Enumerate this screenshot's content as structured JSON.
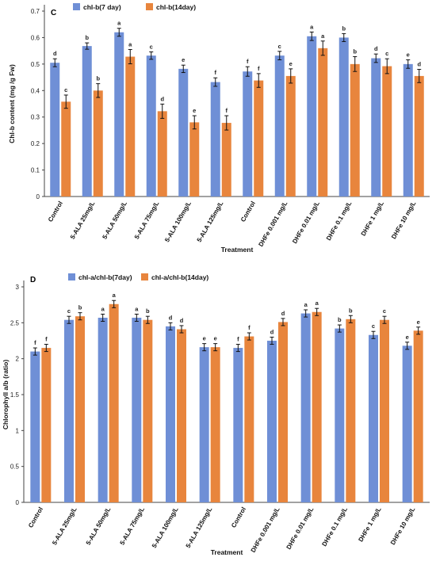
{
  "chart_data": [
    {
      "panel": "C",
      "type": "bar",
      "ylabel": "Chl-b content (mg /g Fw)",
      "xlabel": "Treatment",
      "ylim": [
        0,
        0.7
      ],
      "yticks": [
        "0",
        "0.1",
        "0.2",
        "0.3",
        "0.4",
        "0.5",
        "0.6",
        "0.7"
      ],
      "legend_position": "top-left",
      "categories": [
        "Control",
        "5-ALA 25mg/L",
        "5-ALA 50mg/L",
        "5-ALA 75mg/L",
        "5-ALA 100mg/L",
        "5-ALA 125mg/L",
        "Control",
        "DHFe 0.001 mg/L",
        "DHFe 0.01 mg/L",
        "DHFe 0.1 mg/L",
        "DHFe 1 mg/L",
        "DHFe 10 mg/L"
      ],
      "series": [
        {
          "name": "chl-b(7 day)",
          "color": "#6f8fd6",
          "values": [
            0.505,
            0.568,
            0.62,
            0.532,
            0.482,
            0.432,
            0.472,
            0.532,
            0.605,
            0.6,
            0.522,
            0.5
          ],
          "errors": [
            0.015,
            0.012,
            0.015,
            0.014,
            0.014,
            0.016,
            0.018,
            0.016,
            0.016,
            0.015,
            0.016,
            0.016
          ],
          "letters": [
            "d",
            "b",
            "a",
            "c",
            "e",
            "f",
            "f",
            "c",
            "a",
            "b",
            "d",
            "e"
          ]
        },
        {
          "name": "chl-b(14day)",
          "color": "#e8853d",
          "values": [
            0.358,
            0.4,
            0.528,
            0.322,
            0.28,
            0.278,
            0.438,
            0.455,
            0.56,
            0.5,
            0.492,
            0.455
          ],
          "errors": [
            0.025,
            0.026,
            0.027,
            0.027,
            0.025,
            0.027,
            0.026,
            0.027,
            0.027,
            0.028,
            0.028,
            0.025
          ],
          "letters": [
            "c",
            "b",
            "a",
            "d",
            "e",
            "f",
            "f",
            "e",
            "a",
            "b",
            "c",
            "d"
          ]
        }
      ]
    },
    {
      "panel": "D",
      "type": "bar",
      "ylabel": "Chlorophyll a/b (ratio)",
      "xlabel": "Treatment",
      "ylim": [
        0,
        3
      ],
      "yticks": [
        "0",
        "0.5",
        "1",
        "1.5",
        "2",
        "2.5",
        "3"
      ],
      "legend_position": "top-left",
      "categories": [
        "Control",
        "5-ALA 25mg/L",
        "5-ALA 50mg/L",
        "5-ALA 75mg/L",
        "5-ALA 100mg/L",
        "5-ALA 125mg/L",
        "Control",
        "DHFe 0.001 mg/L",
        "DHFe 0.01 mg/L",
        "DHFe 0.1 mg/L",
        "DHFe 1 mg/L",
        "DHFe 10 mg/L"
      ],
      "series": [
        {
          "name": "chl-a/chl-b(7day)",
          "color": "#6f8fd6",
          "values": [
            2.1,
            2.54,
            2.57,
            2.57,
            2.45,
            2.16,
            2.15,
            2.25,
            2.63,
            2.42,
            2.33,
            2.18
          ],
          "errors": [
            0.05,
            0.05,
            0.05,
            0.05,
            0.05,
            0.05,
            0.05,
            0.05,
            0.05,
            0.05,
            0.05,
            0.05
          ],
          "letters": [
            "f",
            "c",
            "a",
            "a",
            "d",
            "e",
            "f",
            "d",
            "a",
            "b",
            "c",
            "e"
          ]
        },
        {
          "name": "chl-a/chl-b(14day)",
          "color": "#e8853d",
          "values": [
            2.15,
            2.59,
            2.76,
            2.54,
            2.41,
            2.16,
            2.31,
            2.51,
            2.65,
            2.55,
            2.54,
            2.39
          ],
          "errors": [
            0.05,
            0.05,
            0.05,
            0.05,
            0.05,
            0.05,
            0.05,
            0.05,
            0.05,
            0.05,
            0.05,
            0.05
          ],
          "letters": [
            "f",
            "b",
            "a",
            "b",
            "d",
            "e",
            "f",
            "d",
            "a",
            "b",
            "c",
            "e"
          ]
        }
      ]
    }
  ]
}
